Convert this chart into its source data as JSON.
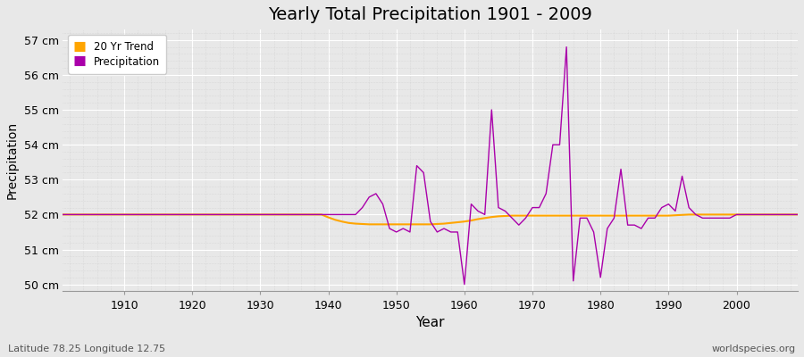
{
  "title": "Yearly Total Precipitation 1901 - 2009",
  "xlabel": "Year",
  "ylabel": "Precipitation",
  "subtitle": "Latitude 78.25 Longitude 12.75",
  "watermark": "worldspecies.org",
  "bg_color": "#e8e8e8",
  "plot_bg_color": "#e8e8e8",
  "precip_color": "#aa00aa",
  "trend_color": "#FFA500",
  "ylim": [
    49.8,
    57.3
  ],
  "yticks": [
    50,
    51,
    52,
    53,
    54,
    55,
    56,
    57
  ],
  "ytick_labels": [
    "50 cm",
    "51 cm",
    "52 cm",
    "53 cm",
    "54 cm",
    "55 cm",
    "56 cm",
    "57 cm"
  ],
  "xlim": [
    1901,
    2009
  ],
  "xticks": [
    1910,
    1920,
    1930,
    1940,
    1950,
    1960,
    1970,
    1980,
    1990,
    2000
  ],
  "years": [
    1901,
    1902,
    1903,
    1904,
    1905,
    1906,
    1907,
    1908,
    1909,
    1910,
    1911,
    1912,
    1913,
    1914,
    1915,
    1916,
    1917,
    1918,
    1919,
    1920,
    1921,
    1922,
    1923,
    1924,
    1925,
    1926,
    1927,
    1928,
    1929,
    1930,
    1931,
    1932,
    1933,
    1934,
    1935,
    1936,
    1937,
    1938,
    1939,
    1940,
    1941,
    1942,
    1943,
    1944,
    1945,
    1946,
    1947,
    1948,
    1949,
    1950,
    1951,
    1952,
    1953,
    1954,
    1955,
    1956,
    1957,
    1958,
    1959,
    1960,
    1961,
    1962,
    1963,
    1964,
    1965,
    1966,
    1967,
    1968,
    1969,
    1970,
    1971,
    1972,
    1973,
    1974,
    1975,
    1976,
    1977,
    1978,
    1979,
    1980,
    1981,
    1982,
    1983,
    1984,
    1985,
    1986,
    1987,
    1988,
    1989,
    1990,
    1991,
    1992,
    1993,
    1994,
    1995,
    1996,
    1997,
    1998,
    1999,
    2000,
    2001,
    2002,
    2003,
    2004,
    2005,
    2006,
    2007,
    2008,
    2009
  ],
  "precip": [
    52.0,
    52.0,
    52.0,
    52.0,
    52.0,
    52.0,
    52.0,
    52.0,
    52.0,
    52.0,
    52.0,
    52.0,
    52.0,
    52.0,
    52.0,
    52.0,
    52.0,
    52.0,
    52.0,
    52.0,
    52.0,
    52.0,
    52.0,
    52.0,
    52.0,
    52.0,
    52.0,
    52.0,
    52.0,
    52.0,
    52.0,
    52.0,
    52.0,
    52.0,
    52.0,
    52.0,
    52.0,
    52.0,
    52.0,
    52.0,
    52.0,
    52.0,
    52.0,
    52.0,
    52.2,
    52.5,
    52.6,
    52.3,
    51.6,
    51.5,
    51.6,
    51.5,
    53.4,
    53.2,
    51.8,
    51.5,
    51.6,
    51.5,
    51.5,
    50.0,
    52.3,
    52.1,
    52.0,
    55.0,
    52.2,
    52.1,
    51.9,
    51.7,
    51.9,
    52.2,
    52.2,
    52.6,
    54.0,
    54.0,
    56.8,
    50.1,
    51.9,
    51.9,
    51.5,
    50.2,
    51.6,
    51.9,
    53.3,
    51.7,
    51.7,
    51.6,
    51.9,
    51.9,
    52.2,
    52.3,
    52.1,
    53.1,
    52.2,
    52.0,
    51.9,
    51.9,
    51.9,
    51.9,
    51.9,
    52.0,
    52.0,
    52.0,
    52.0,
    52.0,
    52.0,
    52.0,
    52.0,
    52.0,
    52.0
  ],
  "trend": [
    52.0,
    52.0,
    52.0,
    52.0,
    52.0,
    52.0,
    52.0,
    52.0,
    52.0,
    52.0,
    52.0,
    52.0,
    52.0,
    52.0,
    52.0,
    52.0,
    52.0,
    52.0,
    52.0,
    52.0,
    52.0,
    52.0,
    52.0,
    52.0,
    52.0,
    52.0,
    52.0,
    52.0,
    52.0,
    52.0,
    52.0,
    52.0,
    52.0,
    52.0,
    52.0,
    52.0,
    52.0,
    52.0,
    52.0,
    51.92,
    51.85,
    51.8,
    51.76,
    51.74,
    51.73,
    51.72,
    51.72,
    51.72,
    51.72,
    51.72,
    51.72,
    51.72,
    51.72,
    51.72,
    51.72,
    51.73,
    51.74,
    51.76,
    51.78,
    51.8,
    51.83,
    51.87,
    51.9,
    51.93,
    51.95,
    51.96,
    51.97,
    51.97,
    51.97,
    51.97,
    51.97,
    51.97,
    51.97,
    51.97,
    51.97,
    51.97,
    51.97,
    51.97,
    51.97,
    51.97,
    51.97,
    51.97,
    51.97,
    51.97,
    51.97,
    51.97,
    51.97,
    51.97,
    51.97,
    51.97,
    51.98,
    51.99,
    52.0,
    52.0,
    52.0,
    52.0,
    52.0,
    52.0,
    52.0,
    52.0,
    52.0,
    52.0,
    52.0,
    52.0,
    52.0,
    52.0,
    52.0,
    52.0,
    52.0
  ]
}
